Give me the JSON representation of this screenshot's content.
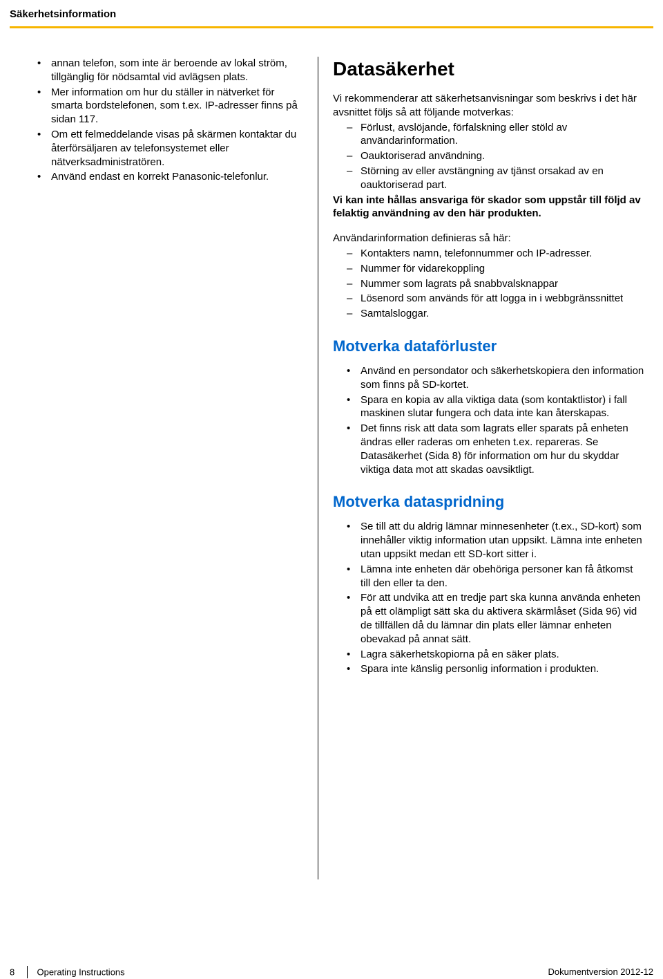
{
  "header": {
    "title": "Säkerhetsinformation"
  },
  "colors": {
    "accent_rule": "#f7b500",
    "heading_blue": "#0066cc",
    "text": "#000000",
    "background": "#ffffff"
  },
  "left": {
    "bullets": [
      "annan telefon, som inte är beroende av lokal ström, tillgänglig för nödsamtal vid avlägsen plats.",
      "Mer information om hur du ställer in nätverket för smarta bordstelefonen, som t.ex. IP-adresser finns på sidan 117.",
      "Om ett felmeddelande visas på skärmen kontaktar du återförsäljaren av telefonsystemet eller nätverksadministratören.",
      "Använd endast en korrekt Panasonic-telefonlur."
    ]
  },
  "right": {
    "main_heading": "Datasäkerhet",
    "intro": "Vi rekommenderar att säkerhetsanvisningar som beskrivs i det här avsnittet följs så att följande motverkas:",
    "intro_dashes": [
      "Förlust, avslöjande, förfalskning eller stöld av användarinformation.",
      "Oauktoriserad användning.",
      "Störning av eller avstängning av tjänst orsakad av en oauktoriserad part."
    ],
    "bold_disclaimer": "Vi kan inte hållas ansvariga för skador som uppstår till följd av felaktig användning av den här produkten.",
    "def_intro": "Användarinformation definieras så här:",
    "def_dashes": [
      "Kontakters namn, telefonnummer och IP-adresser.",
      "Nummer för vidarekoppling",
      "Nummer som lagrats på snabbvalsknappar",
      "Lösenord som används för att logga in i webbgränssnittet",
      "Samtalsloggar."
    ],
    "section1": {
      "heading": "Motverka dataförluster",
      "bullets": [
        "Använd en persondator och säkerhetskopiera den information som finns på SD-kortet.",
        "Spara en kopia av alla viktiga data (som kontaktlistor) i fall maskinen slutar fungera och data inte kan återskapas.",
        "Det finns risk att data som lagrats eller sparats på enheten ändras eller raderas om enheten t.ex. repareras. Se Datasäkerhet (Sida 8) för information om hur du skyddar viktiga data mot att skadas oavsiktligt."
      ]
    },
    "section2": {
      "heading": "Motverka dataspridning",
      "bullets": [
        "Se till att du aldrig lämnar minnesenheter (t.ex., SD-kort) som innehåller viktig information utan uppsikt. Lämna inte enheten utan uppsikt medan ett SD-kort sitter i.",
        "Lämna inte enheten där obehöriga personer kan få åtkomst till den eller ta den.",
        "För att undvika att en tredje part ska kunna använda enheten på ett olämpligt sätt ska du aktivera skärmlåset (Sida 96) vid de tillfällen då du lämnar din plats eller lämnar enheten obevakad på annat sätt.",
        "Lagra säkerhetskopiorna på en säker plats.",
        "Spara inte känslig personlig information i produkten."
      ]
    }
  },
  "footer": {
    "page_number": "8",
    "doc_title": "Operating Instructions",
    "version": "Dokumentversion  2012-12"
  }
}
